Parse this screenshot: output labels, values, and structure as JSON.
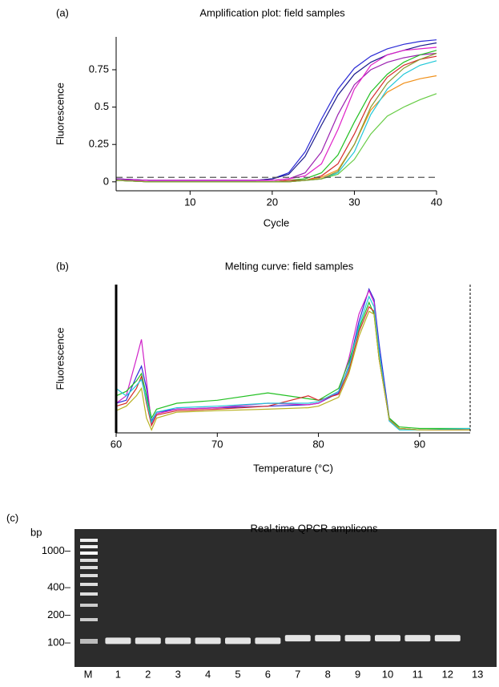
{
  "chart_data": [
    {
      "type": "line",
      "panel_label": "(a)",
      "title": "Amplification plot: field samples",
      "xlabel": "Cycle",
      "ylabel": "Fluorescence",
      "xlim": [
        1,
        40
      ],
      "ylim": [
        -0.06,
        0.97
      ],
      "xticks": [
        10,
        20,
        30,
        40
      ],
      "yticks": [
        0,
        0.25,
        0.5,
        0.75
      ],
      "threshold": 0.03,
      "x": [
        1,
        5,
        10,
        15,
        18,
        20,
        22,
        24,
        26,
        28,
        30,
        32,
        34,
        36,
        38,
        40
      ],
      "series": [
        {
          "color": "#2b2bd6",
          "values": [
            0.02,
            0.01,
            0.01,
            0.01,
            0.01,
            0.02,
            0.06,
            0.2,
            0.42,
            0.62,
            0.76,
            0.84,
            0.89,
            0.92,
            0.94,
            0.95
          ]
        },
        {
          "color": "#1a1a8c",
          "values": [
            0.02,
            0.01,
            0.01,
            0.01,
            0.01,
            0.02,
            0.05,
            0.17,
            0.38,
            0.58,
            0.72,
            0.8,
            0.85,
            0.88,
            0.91,
            0.93
          ]
        },
        {
          "color": "#9b1fb0",
          "values": [
            0.02,
            0.01,
            0.01,
            0.01,
            0.01,
            0.01,
            0.02,
            0.06,
            0.2,
            0.45,
            0.65,
            0.75,
            0.8,
            0.83,
            0.85,
            0.86
          ]
        },
        {
          "color": "#e020c8",
          "values": [
            0.01,
            0.01,
            0.01,
            0.01,
            0.01,
            0.01,
            0.02,
            0.04,
            0.12,
            0.35,
            0.62,
            0.78,
            0.85,
            0.88,
            0.89,
            0.9
          ]
        },
        {
          "color": "#22c022",
          "values": [
            0.01,
            0,
            0,
            0,
            0,
            0,
            0.01,
            0.02,
            0.06,
            0.18,
            0.4,
            0.6,
            0.72,
            0.8,
            0.85,
            0.88
          ]
        },
        {
          "color": "#d42a2a",
          "values": [
            0.01,
            0,
            0,
            0,
            0,
            0,
            0.01,
            0.01,
            0.04,
            0.12,
            0.32,
            0.55,
            0.7,
            0.78,
            0.82,
            0.84
          ]
        },
        {
          "color": "#f0901a",
          "values": [
            0.01,
            0,
            0,
            0,
            0,
            0,
            0,
            0.01,
            0.03,
            0.08,
            0.25,
            0.48,
            0.6,
            0.66,
            0.69,
            0.71
          ]
        },
        {
          "color": "#20c8d8",
          "values": [
            0.01,
            0,
            0,
            0,
            0,
            0,
            0,
            0.01,
            0.02,
            0.06,
            0.2,
            0.45,
            0.62,
            0.72,
            0.78,
            0.81
          ]
        },
        {
          "color": "#66cc44",
          "values": [
            0.01,
            0,
            0,
            0,
            0,
            0,
            0,
            0.01,
            0.02,
            0.05,
            0.15,
            0.32,
            0.44,
            0.5,
            0.55,
            0.59
          ]
        },
        {
          "color": "#8a9a30",
          "values": [
            0.01,
            0,
            0,
            0,
            0,
            0,
            0,
            0.01,
            0.02,
            0.07,
            0.25,
            0.5,
            0.66,
            0.76,
            0.82,
            0.86
          ]
        }
      ]
    },
    {
      "type": "line",
      "panel_label": "(b)",
      "title": "Melting curve: field samples",
      "xlabel": "Temperature (°C)",
      "ylabel": "Fluorescence",
      "xlim": [
        60,
        95
      ],
      "ylim": [
        0,
        1
      ],
      "xticks": [
        60,
        70,
        80,
        90
      ],
      "x": [
        60,
        61,
        62,
        62.5,
        63,
        63.5,
        64,
        66,
        70,
        75,
        79,
        80,
        82,
        83,
        84,
        85,
        85.5,
        86,
        87,
        88,
        90,
        95
      ],
      "series": [
        {
          "color": "#2b2bd6",
          "values": [
            0.2,
            0.22,
            0.38,
            0.45,
            0.3,
            0.08,
            0.14,
            0.16,
            0.17,
            0.18,
            0.19,
            0.2,
            0.27,
            0.45,
            0.75,
            0.97,
            0.9,
            0.6,
            0.1,
            0.03,
            0.02,
            0.02
          ]
        },
        {
          "color": "#d020c8",
          "values": [
            0.2,
            0.25,
            0.5,
            0.63,
            0.35,
            0.06,
            0.13,
            0.16,
            0.17,
            0.2,
            0.19,
            0.2,
            0.28,
            0.5,
            0.8,
            0.96,
            0.88,
            0.55,
            0.08,
            0.03,
            0.02,
            0.02
          ]
        },
        {
          "color": "#22c022",
          "values": [
            0.25,
            0.28,
            0.35,
            0.4,
            0.25,
            0.1,
            0.16,
            0.2,
            0.22,
            0.27,
            0.23,
            0.22,
            0.3,
            0.48,
            0.7,
            0.88,
            0.8,
            0.5,
            0.1,
            0.04,
            0.03,
            0.03
          ]
        },
        {
          "color": "#d42a2a",
          "values": [
            0.18,
            0.2,
            0.3,
            0.38,
            0.2,
            0.05,
            0.12,
            0.15,
            0.16,
            0.18,
            0.25,
            0.22,
            0.26,
            0.42,
            0.68,
            0.85,
            0.82,
            0.5,
            0.09,
            0.03,
            0.02,
            0.02
          ]
        },
        {
          "color": "#20c8d8",
          "values": [
            0.3,
            0.25,
            0.32,
            0.36,
            0.22,
            0.07,
            0.14,
            0.17,
            0.18,
            0.2,
            0.2,
            0.21,
            0.28,
            0.44,
            0.72,
            0.92,
            0.85,
            0.55,
            0.08,
            0.02,
            0.02,
            0.03
          ]
        },
        {
          "color": "#b8b020",
          "values": [
            0.15,
            0.18,
            0.25,
            0.3,
            0.1,
            0.02,
            0.1,
            0.14,
            0.15,
            0.16,
            0.17,
            0.18,
            0.24,
            0.4,
            0.65,
            0.82,
            0.8,
            0.5,
            0.09,
            0.03,
            0.02,
            0.02
          ]
        }
      ]
    },
    {
      "type": "gel",
      "panel_label": "(c)",
      "title": "Real-time QPCR amplicons",
      "ylabel": "bp",
      "log": true,
      "ylim": [
        55,
        1740
      ],
      "yticks": [
        {
          "value": 1000,
          "label": "1000–"
        },
        {
          "value": 400,
          "label": "400–"
        },
        {
          "value": 200,
          "label": "200–"
        },
        {
          "value": 100,
          "label": "100–"
        }
      ],
      "categories": [
        "M",
        "1",
        "2",
        "3",
        "4",
        "5",
        "6",
        "7",
        "8",
        "9",
        "10",
        "11",
        "12",
        "13"
      ],
      "values": [
        null,
        106,
        106,
        106,
        106,
        106,
        106,
        113,
        113,
        113,
        113,
        113,
        113,
        null
      ]
    }
  ]
}
